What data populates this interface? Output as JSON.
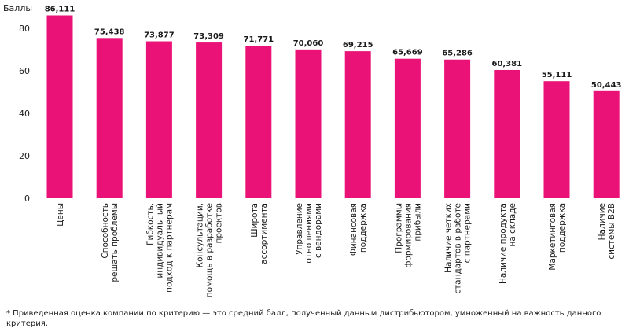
{
  "chart_data": {
    "type": "bar",
    "ylabel": "Баллы",
    "ylim": [
      0,
      90
    ],
    "yticks": [
      0,
      20,
      40,
      60,
      80
    ],
    "grid": false,
    "bar_color": "#ea1277",
    "categories": [
      [
        "Цены"
      ],
      [
        "Способность",
        "решать проблемы"
      ],
      [
        "Гибкость,",
        "индивидуальный",
        "подход к партнерам"
      ],
      [
        "Консультации,",
        "помощь в разработке",
        "проектов"
      ],
      [
        "Широта",
        "ассортимента"
      ],
      [
        "Управление",
        "отношениями",
        "с вендорами"
      ],
      [
        "Финансовая",
        "поддержка"
      ],
      [
        "Программы",
        "формирования",
        "прибыли"
      ],
      [
        "Наличие четких",
        "стандартов в работе",
        "с партнерами"
      ],
      [
        "Наличие продукта",
        "на складе"
      ],
      [
        "Маркетинговая",
        "поддержка"
      ],
      [
        "Наличие",
        "системы B2B"
      ]
    ],
    "values": [
      86.111,
      75.438,
      73.877,
      73.309,
      71.771,
      70.06,
      69.215,
      65.669,
      65.286,
      60.381,
      55.111,
      50.443
    ],
    "value_labels": [
      "86,111",
      "75,438",
      "73,877",
      "73,309",
      "71,771",
      "70,060",
      "69,215",
      "65,669",
      "65,286",
      "60,381",
      "55,111",
      "50,443"
    ]
  },
  "footnote": "* Приведенная оценка компании по критерию — это средний балл, полученный данным дистрибьютором, умноженный на важность данного критерия."
}
